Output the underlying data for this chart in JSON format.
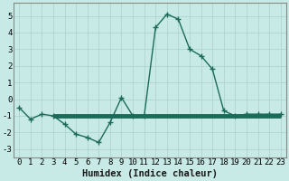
{
  "x": [
    0,
    1,
    2,
    3,
    4,
    5,
    6,
    7,
    8,
    9,
    10,
    11,
    12,
    13,
    14,
    15,
    16,
    17,
    18,
    19,
    20,
    21,
    22,
    23
  ],
  "y": [
    -0.5,
    -1.2,
    -0.9,
    -1.0,
    -1.5,
    -2.1,
    -2.3,
    -2.6,
    -1.4,
    0.1,
    -1.0,
    -1.0,
    4.3,
    5.1,
    4.8,
    3.0,
    2.6,
    1.8,
    -0.7,
    -1.0,
    -0.9,
    -0.9,
    -0.9,
    -0.9
  ],
  "line_color": "#1a6b5a",
  "bg_color": "#c8eae6",
  "grid_color": "#b0d4d0",
  "xlabel": "Humidex (Indice chaleur)",
  "ylim": [
    -3.5,
    5.8
  ],
  "xlim": [
    -0.5,
    23.5
  ],
  "yticks": [
    -3,
    -2,
    -1,
    0,
    1,
    2,
    3,
    4,
    5
  ],
  "xticks": [
    0,
    1,
    2,
    3,
    4,
    5,
    6,
    7,
    8,
    9,
    10,
    11,
    12,
    13,
    14,
    15,
    16,
    17,
    18,
    19,
    20,
    21,
    22,
    23
  ],
  "marker": "+",
  "markersize": 5,
  "linewidth": 1.0,
  "thick_line_y": -1.0,
  "thick_line_x_start": 3,
  "thick_line_x_end": 23,
  "thick_linewidth": 3.5,
  "xlabel_fontsize": 7.5,
  "tick_fontsize": 6.5
}
